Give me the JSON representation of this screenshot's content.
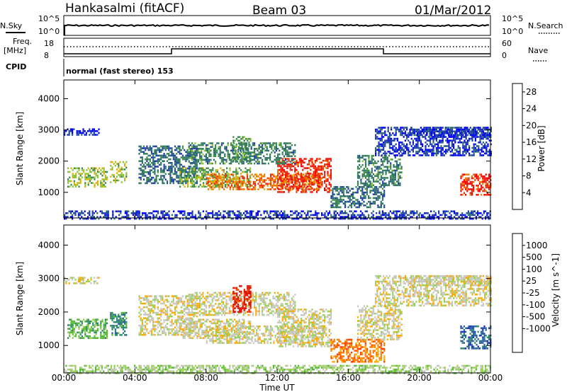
{
  "header": {
    "station": "Hankasalmi (fitACF)",
    "beam": "Beam 03",
    "date": "01/Mar/2012"
  },
  "top_panels": {
    "nsky_label": "N.Sky",
    "nsky_ticks": [
      "10^5",
      "10^0"
    ],
    "nsearch_label": "N.Search",
    "nsearch_ticks": [
      "10^5",
      "10^0"
    ],
    "freq_label": "Freq.",
    "freq_unit": "[MHz]",
    "freq_ticks": [
      "18",
      "8"
    ],
    "nave_label": "Nave",
    "nave_ticks": [
      "60",
      "0"
    ],
    "cpid_label": "CPID",
    "cpid_text": "normal (fast stereo) 153"
  },
  "colors": {
    "power": [
      "#0000ff",
      "#1e3fa8",
      "#2e6e6e",
      "#3a8a4a",
      "#8fc23a",
      "#e0b000",
      "#f07800",
      "#e83010",
      "#ff0000"
    ],
    "velocity": [
      "#1c2fc0",
      "#2a5fa0",
      "#2a8a6a",
      "#55bb33",
      "#9ad05a",
      "#c8c8c0",
      "#ffaa00",
      "#ff7a00",
      "#ff4000",
      "#e01000"
    ]
  },
  "chart_data": [
    {
      "type": "heatmap",
      "title": "",
      "xlabel": "Time UT",
      "ylabel": "Slant Range [km]",
      "xlim": [
        "00:00",
        "00:00"
      ],
      "ylim": [
        180,
        4600
      ],
      "x_ticks": [
        "00:00",
        "04:00",
        "08:00",
        "12:00",
        "16:00",
        "20:00",
        "00:00"
      ],
      "y_ticks": [
        1000,
        2000,
        3000,
        4000
      ],
      "colorbar": {
        "label": "Power [dB]",
        "ticks": [
          "4",
          "8",
          "12",
          "16",
          "20",
          "24",
          "28"
        ],
        "range": [
          0,
          30
        ]
      }
    },
    {
      "type": "heatmap",
      "title": "",
      "xlabel": "Time UT",
      "ylabel": "Slant Range [km]",
      "xlim": [
        "00:00",
        "00:00"
      ],
      "ylim": [
        180,
        4600
      ],
      "x_ticks": [
        "00:00",
        "04:00",
        "08:00",
        "12:00",
        "16:00",
        "20:00",
        "00:00"
      ],
      "y_ticks": [
        1000,
        2000,
        3000,
        4000
      ],
      "colorbar": {
        "label": "Velocity [m s^-1]",
        "ticks": [
          "1000",
          "500",
          "100",
          "25",
          "-25",
          "-100",
          "-500",
          "-1000"
        ]
      }
    }
  ],
  "scatter_blobs": [
    {
      "t0": 0.2,
      "t1": 2.4,
      "r0": 1200,
      "r1": 1800,
      "pow": 15,
      "vel": 3
    },
    {
      "t0": 2.6,
      "t1": 3.5,
      "r0": 1300,
      "r1": 2000,
      "pow": 16,
      "vel": 2
    },
    {
      "t0": 0.0,
      "t1": 2.0,
      "r0": 2850,
      "r1": 3050,
      "pow": 3,
      "vel": 5
    },
    {
      "t0": 4.2,
      "t1": 7.5,
      "r0": 1300,
      "r1": 2500,
      "pow": 8,
      "vel": 5
    },
    {
      "t0": 6.5,
      "t1": 10.5,
      "r0": 1200,
      "r1": 1800,
      "pow": 14,
      "vel": 5
    },
    {
      "t0": 8.0,
      "t1": 14.5,
      "r0": 1100,
      "r1": 1600,
      "pow": 22,
      "vel": 5
    },
    {
      "t0": 12.0,
      "t1": 15.0,
      "r0": 1000,
      "r1": 2100,
      "pow": 26,
      "vel": 5
    },
    {
      "t0": 7.0,
      "t1": 13.0,
      "r0": 1900,
      "r1": 2600,
      "pow": 10,
      "vel": 5
    },
    {
      "t0": 15.0,
      "t1": 18.0,
      "r0": 500,
      "r1": 1200,
      "pow": 8,
      "vel": 7
    },
    {
      "t0": 16.5,
      "t1": 19.0,
      "r0": 1200,
      "r1": 2200,
      "pow": 10,
      "vel": 5
    },
    {
      "t0": 17.5,
      "t1": 24.0,
      "r0": 2200,
      "r1": 3100,
      "pow": 4,
      "vel": 5
    },
    {
      "t0": 19.5,
      "t1": 24.0,
      "r0": 2800,
      "r1": 3100,
      "pow": 4,
      "vel": 5
    },
    {
      "t0": 22.3,
      "t1": 24.0,
      "r0": 900,
      "r1": 1600,
      "pow": 26,
      "vel": 1
    },
    {
      "t0": 0.0,
      "t1": 24.0,
      "r0": 180,
      "r1": 420,
      "pow": 4,
      "vel": 4
    },
    {
      "t0": 9.5,
      "t1": 10.5,
      "r0": 2000,
      "r1": 2800,
      "pow": 12,
      "vel": 9
    }
  ]
}
